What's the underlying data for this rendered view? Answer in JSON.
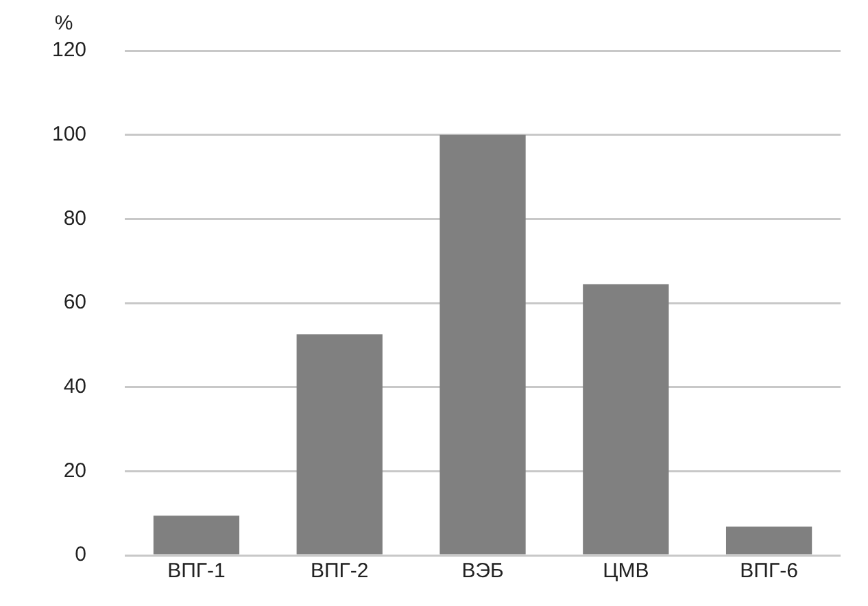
{
  "chart_data": {
    "type": "bar",
    "ylabel": "%",
    "categories": [
      "ВПГ-1",
      "ВПГ-2",
      "ВЭБ",
      "ЦМВ",
      "ВПГ-6"
    ],
    "values": [
      9.4,
      52.6,
      100,
      64.5,
      6.8
    ],
    "color": "#808080",
    "ylim": [
      0,
      120
    ],
    "yticks": [
      0,
      20,
      40,
      60,
      80,
      100,
      120
    ],
    "grid": "y",
    "legend": false
  }
}
